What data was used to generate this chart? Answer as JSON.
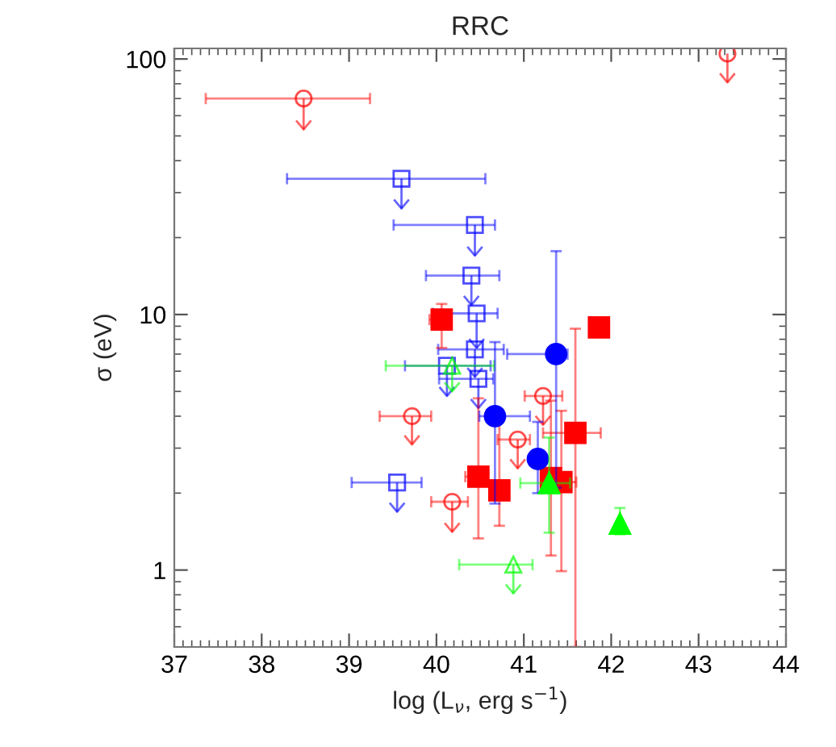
{
  "chart_data": {
    "type": "scatter",
    "title": "RRC",
    "xlabel": "log (L$_{ν}$, erg s$^{−1}$)",
    "ylabel": "σ (eV)",
    "xlim": [
      37,
      44
    ],
    "ylim": [
      0.5,
      110
    ],
    "xticks": [
      37,
      38,
      39,
      40,
      41,
      42,
      43,
      44
    ],
    "yticks": [
      1,
      10,
      100
    ],
    "log": "y",
    "grid": false,
    "legend": false,
    "series": [
      {
        "color": "#ff0000",
        "marker": "circle",
        "x": [
          38.48,
          43.33,
          39.72,
          41.22,
          40.93,
          40.18
        ],
        "values": [
          70,
          105,
          4.0,
          4.8,
          3.24,
          1.85
        ],
        "errors": [
          [
            53,
            70
          ],
          [
            81,
            105
          ],
          [
            3.1,
            4.0
          ],
          [
            3.7,
            4.8
          ],
          [
            2.5,
            3.24
          ],
          [
            1.41,
            1.85
          ]
        ],
        "xerrors": [
          [
            37.36,
            39.24
          ],
          null,
          [
            39.35,
            39.94
          ],
          [
            41.01,
            41.44
          ],
          [
            40.7,
            41.07
          ],
          [
            39.94,
            40.36
          ]
        ]
      },
      {
        "color": "#0000ff",
        "marker": "square",
        "x": [
          39.6,
          40.44,
          40.4,
          40.46,
          40.44,
          40.12,
          40.48,
          39.55
        ],
        "values": [
          34,
          22.4,
          14.2,
          10.1,
          7.3,
          6.3,
          5.6,
          2.2
        ],
        "errors": [
          [
            26,
            34
          ],
          [
            17,
            22.4
          ],
          [
            10.9,
            14.2
          ],
          [
            7.4,
            10.1
          ],
          [
            5.7,
            7.3
          ],
          [
            4.8,
            6.3
          ],
          [
            4.3,
            5.6
          ],
          [
            1.69,
            2.2
          ]
        ],
        "xerrors": [
          [
            38.29,
            40.56
          ],
          [
            39.51,
            40.67
          ],
          [
            39.88,
            40.72
          ],
          [
            39.96,
            40.7
          ],
          [
            40.02,
            40.77
          ],
          [
            39.64,
            40.62
          ],
          [
            40.03,
            40.65
          ],
          [
            39.03,
            39.83
          ]
        ]
      },
      {
        "color": "#00ff00",
        "marker": "triangle",
        "x": [
          40.18,
          40.88
        ],
        "values": [
          6.3,
          1.05
        ],
        "errors": [
          [
            5.0,
            6.3
          ],
          [
            0.81,
            1.05
          ]
        ],
        "xerrors": [
          [
            39.42,
            40.66
          ],
          [
            40.26,
            41.1
          ]
        ]
      },
      {
        "color": "#ff0000",
        "marker": "square",
        "x": [
          40.06,
          41.86,
          41.59,
          40.48,
          40.72,
          41.31,
          41.43
        ],
        "values": [
          9.55,
          8.9,
          3.44,
          2.32,
          2.05,
          2.29,
          2.21
        ],
        "errors": [
          [
            7.4,
            11.0
          ],
          null,
          [
            0.5,
            8.8
          ],
          [
            1.33,
            4.7
          ],
          [
            1.49,
            3.86
          ],
          [
            1.14,
            4.6
          ],
          [
            0.99,
            4.2
          ]
        ],
        "xerrors": [
          [
            39.92,
            40.06
          ],
          null,
          [
            41.22,
            41.88
          ],
          [
            40.33,
            40.58
          ],
          null,
          null,
          [
            41.2,
            41.6
          ]
        ]
      },
      {
        "color": "#0000ff",
        "marker": "circle",
        "x": [
          41.37,
          40.67,
          41.16
        ],
        "values": [
          7.0,
          4.0,
          2.72
        ],
        "errors": [
          [
            2.1,
            17.7
          ],
          [
            1.82,
            7.8
          ],
          [
            2.0,
            3.8
          ]
        ],
        "xerrors": [
          [
            40.81,
            41.5
          ],
          [
            40.49,
            41.07
          ],
          null
        ]
      },
      {
        "color": "#00ff00",
        "marker": "triangle",
        "x": [
          41.29,
          42.1
        ],
        "values": [
          2.19,
          1.52
        ],
        "errors": [
          [
            1.4,
            3.3
          ],
          [
            1.38,
            1.75
          ]
        ],
        "xerrors": [
          [
            40.96,
            41.53
          ],
          null
        ]
      }
    ]
  }
}
